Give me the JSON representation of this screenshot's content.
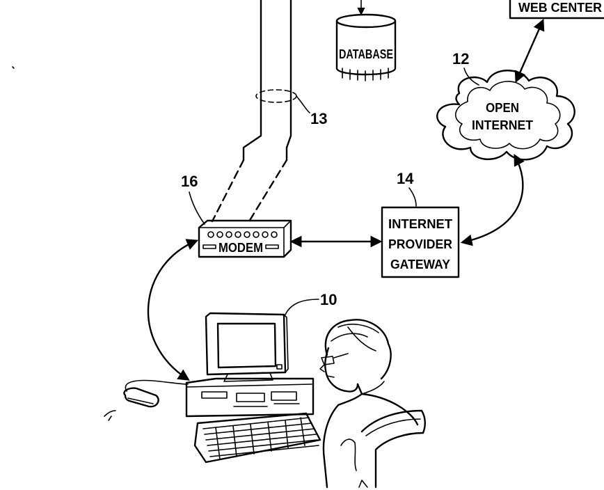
{
  "figure": {
    "web_center_label": "WEB CENTER",
    "database_label": "DATABASE",
    "cloud_label_line1": "OPEN",
    "cloud_label_line2": "INTERNET",
    "modem_label": "MODEM",
    "gateway_line1": "INTERNET",
    "gateway_line2": "PROVIDER",
    "gateway_line3": "GATEWAY",
    "ref_internet": "12",
    "ref_cable": "13",
    "ref_gateway": "14",
    "ref_modem": "16",
    "ref_computer": "10"
  }
}
